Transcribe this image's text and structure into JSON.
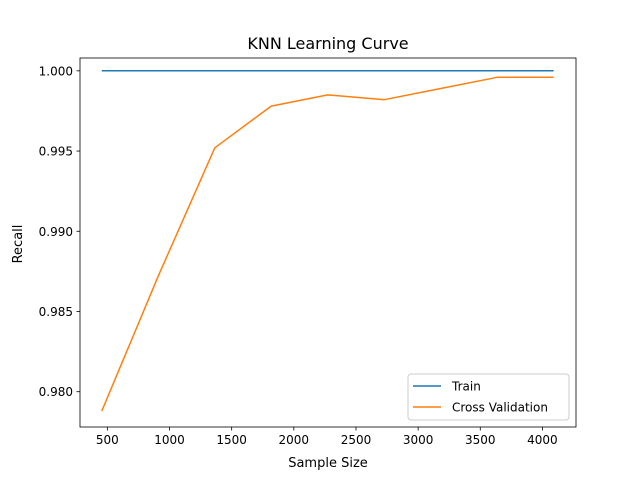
{
  "chart_data": {
    "type": "line",
    "title": "KNN Learning Curve",
    "xlabel": "Sample Size",
    "ylabel": "Recall",
    "xlim": [
      280,
      4270
    ],
    "ylim": [
      0.9778,
      1.0008
    ],
    "x_ticks": [
      500,
      1000,
      1500,
      2000,
      2500,
      3000,
      3500,
      4000
    ],
    "x_tick_labels": [
      "500",
      "1000",
      "1500",
      "2000",
      "2500",
      "3000",
      "3500",
      "4000"
    ],
    "y_ticks": [
      0.98,
      0.985,
      0.99,
      0.995,
      1.0
    ],
    "y_tick_labels": [
      "0.980",
      "0.985",
      "0.990",
      "0.995",
      "1.000"
    ],
    "grid": false,
    "legend_position": "lower-right",
    "series": [
      {
        "name": "Train",
        "color": "#1f77b4",
        "x": [
          455,
          909,
          1364,
          1818,
          2273,
          2727,
          3182,
          3636,
          4090
        ],
        "y": [
          1.0,
          1.0,
          1.0,
          1.0,
          1.0,
          1.0,
          1.0,
          1.0,
          1.0
        ]
      },
      {
        "name": "Cross Validation",
        "color": "#ff7f0e",
        "x": [
          455,
          909,
          1364,
          1818,
          2273,
          2727,
          3182,
          3636,
          4090
        ],
        "y": [
          0.9788,
          0.9872,
          0.9952,
          0.9978,
          0.9985,
          0.9982,
          0.9989,
          0.9996,
          0.9996
        ]
      }
    ]
  }
}
